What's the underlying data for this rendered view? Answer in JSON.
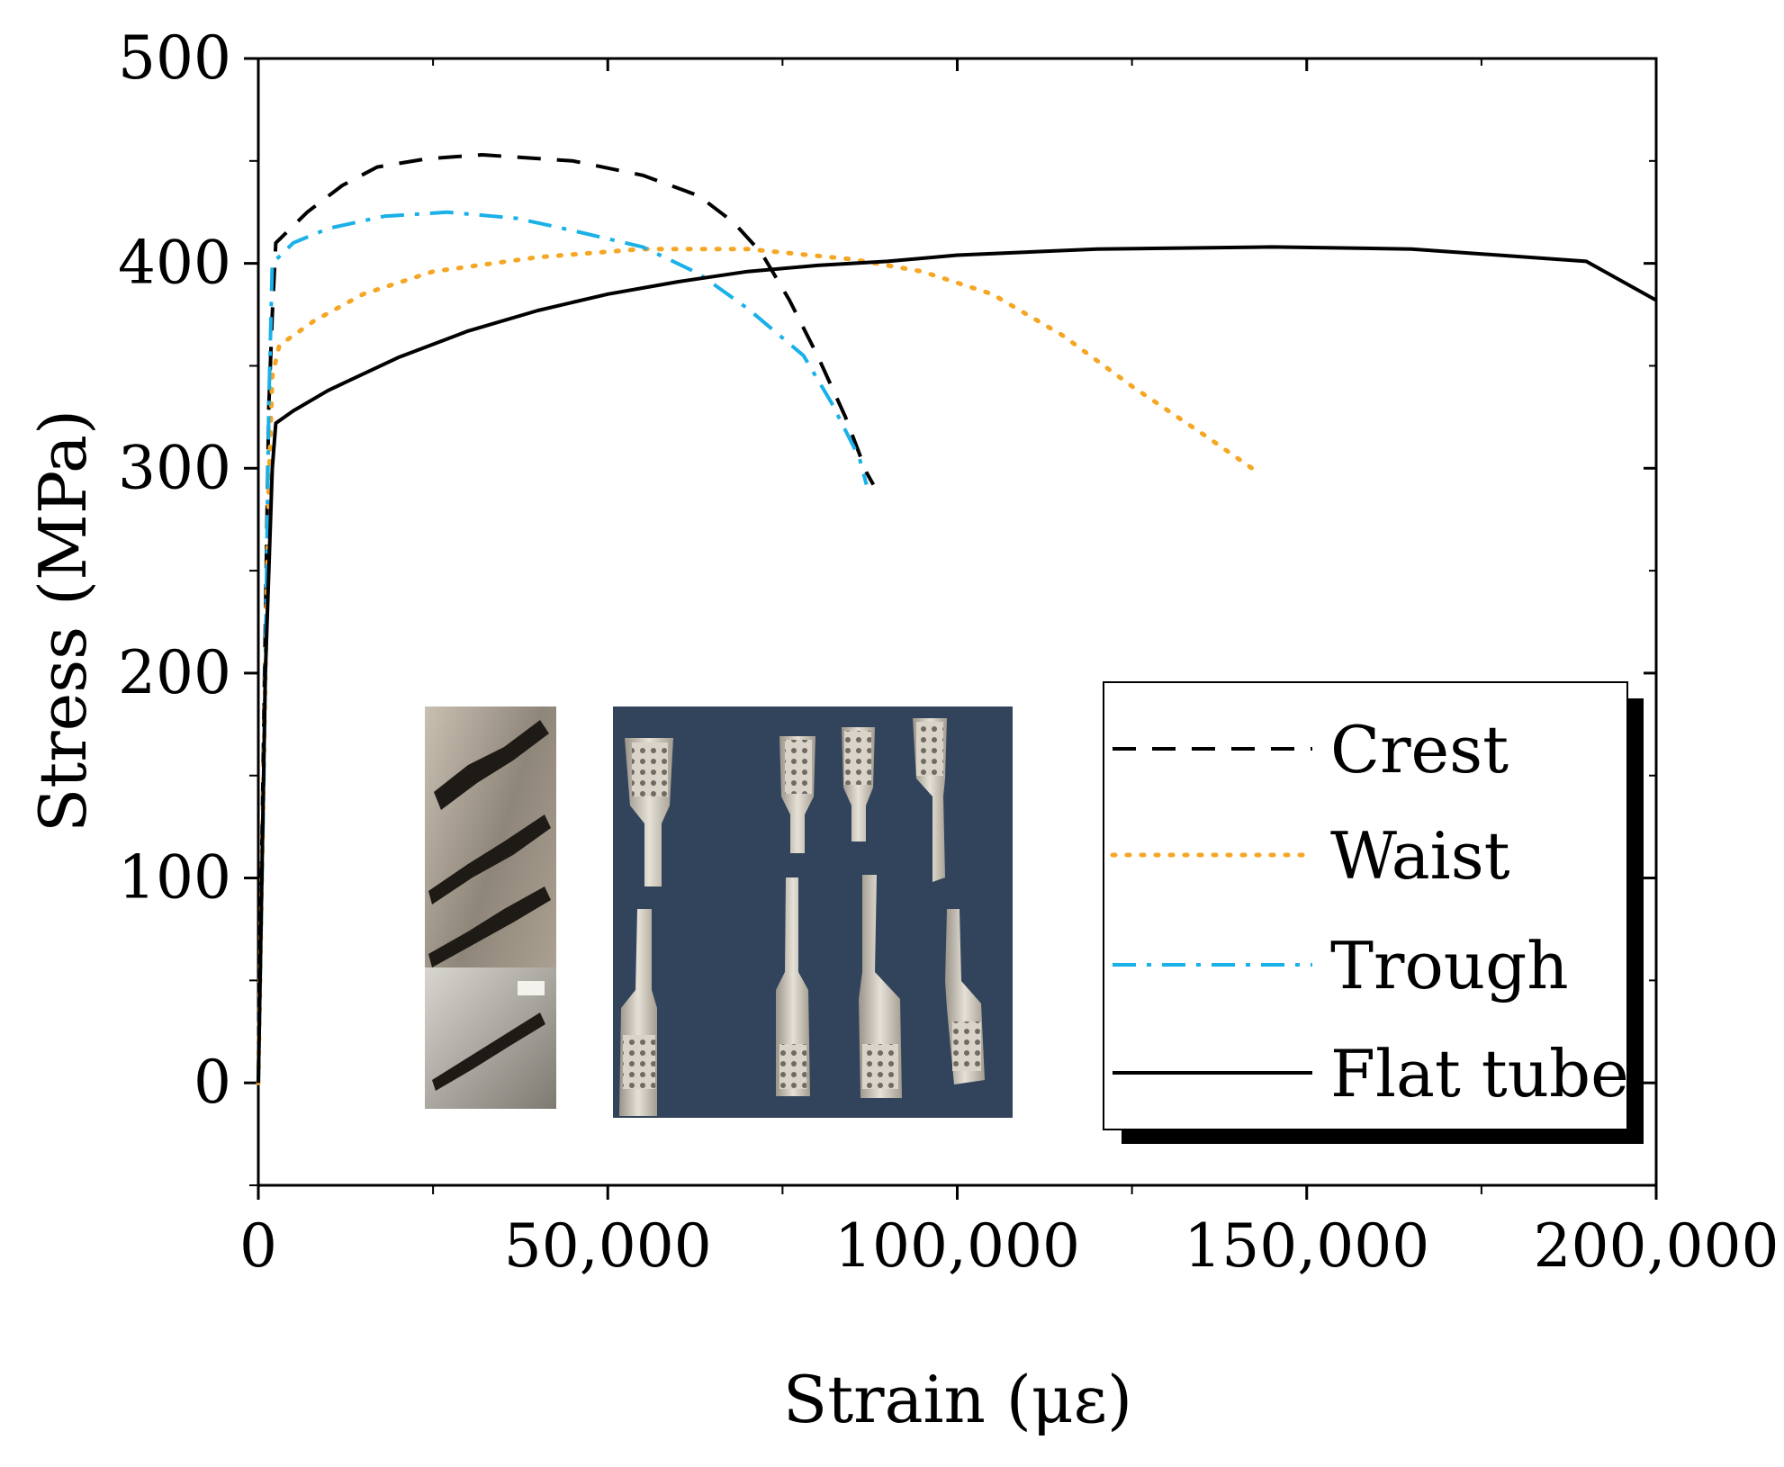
{
  "chart_data": {
    "type": "line",
    "title": "",
    "xlabel": "Strain (με)",
    "ylabel": "Stress (MPa)",
    "xlim": [
      0,
      200000
    ],
    "ylim": [
      -50,
      500
    ],
    "x_ticks": [
      0,
      50000,
      100000,
      150000,
      200000
    ],
    "x_tick_labels": [
      "0",
      "50,000",
      "100,000",
      "150,000",
      "200,000"
    ],
    "y_ticks": [
      0,
      100,
      200,
      300,
      400,
      500
    ],
    "y_tick_labels": [
      "0",
      "100",
      "200",
      "300",
      "400",
      "500"
    ],
    "x_minor_ticks": [
      25000,
      75000,
      125000,
      175000
    ],
    "y_minor_ticks": [
      -50,
      50,
      150,
      250,
      350,
      450
    ],
    "grid": false,
    "legend_position": "bottom-right",
    "series": [
      {
        "name": "Crest",
        "color": "#000000",
        "style": "dashed",
        "points": [
          [
            0,
            0
          ],
          [
            800,
            180
          ],
          [
            1500,
            330
          ],
          [
            2000,
            375
          ],
          [
            2500,
            410
          ],
          [
            7000,
            425
          ],
          [
            12000,
            438
          ],
          [
            17000,
            447
          ],
          [
            24000,
            451
          ],
          [
            32000,
            453
          ],
          [
            45000,
            450
          ],
          [
            55000,
            443
          ],
          [
            63000,
            433
          ],
          [
            68000,
            420
          ],
          [
            72000,
            405
          ],
          [
            76000,
            382
          ],
          [
            80000,
            355
          ],
          [
            84000,
            325
          ],
          [
            87000,
            298
          ],
          [
            88000,
            292
          ]
        ]
      },
      {
        "name": "Waist",
        "color": "#f5a623",
        "style": "dotted",
        "points": [
          [
            0,
            0
          ],
          [
            800,
            160
          ],
          [
            1500,
            290
          ],
          [
            2000,
            345
          ],
          [
            3000,
            360
          ],
          [
            8000,
            372
          ],
          [
            15000,
            385
          ],
          [
            25000,
            396
          ],
          [
            40000,
            403
          ],
          [
            55000,
            407
          ],
          [
            70000,
            407
          ],
          [
            85000,
            402
          ],
          [
            95000,
            396
          ],
          [
            105000,
            385
          ],
          [
            115000,
            365
          ],
          [
            125000,
            340
          ],
          [
            135000,
            317
          ],
          [
            143000,
            298
          ]
        ]
      },
      {
        "name": "Trough",
        "color": "#1ab0e8",
        "style": "dashdot",
        "points": [
          [
            0,
            0
          ],
          [
            800,
            150
          ],
          [
            1500,
            330
          ],
          [
            2000,
            400
          ],
          [
            5000,
            410
          ],
          [
            10000,
            417
          ],
          [
            18000,
            423
          ],
          [
            27000,
            425
          ],
          [
            37000,
            422
          ],
          [
            45000,
            416
          ],
          [
            55000,
            408
          ],
          [
            63000,
            395
          ],
          [
            70000,
            378
          ],
          [
            78000,
            355
          ],
          [
            82000,
            332
          ],
          [
            86000,
            305
          ],
          [
            87000,
            292
          ]
        ]
      },
      {
        "name": "Flat tube",
        "color": "#000000",
        "style": "solid",
        "points": [
          [
            0,
            0
          ],
          [
            1000,
            200
          ],
          [
            2000,
            300
          ],
          [
            2500,
            322
          ],
          [
            5000,
            328
          ],
          [
            10000,
            338
          ],
          [
            20000,
            354
          ],
          [
            30000,
            367
          ],
          [
            40000,
            377
          ],
          [
            50000,
            385
          ],
          [
            60000,
            391
          ],
          [
            70000,
            396
          ],
          [
            80000,
            399
          ],
          [
            90000,
            401
          ],
          [
            100000,
            404
          ],
          [
            120000,
            407
          ],
          [
            145000,
            408
          ],
          [
            165000,
            407
          ],
          [
            190000,
            401
          ],
          [
            200000,
            382
          ]
        ]
      }
    ],
    "inset": {
      "description_visible": false,
      "panels": 2
    }
  }
}
